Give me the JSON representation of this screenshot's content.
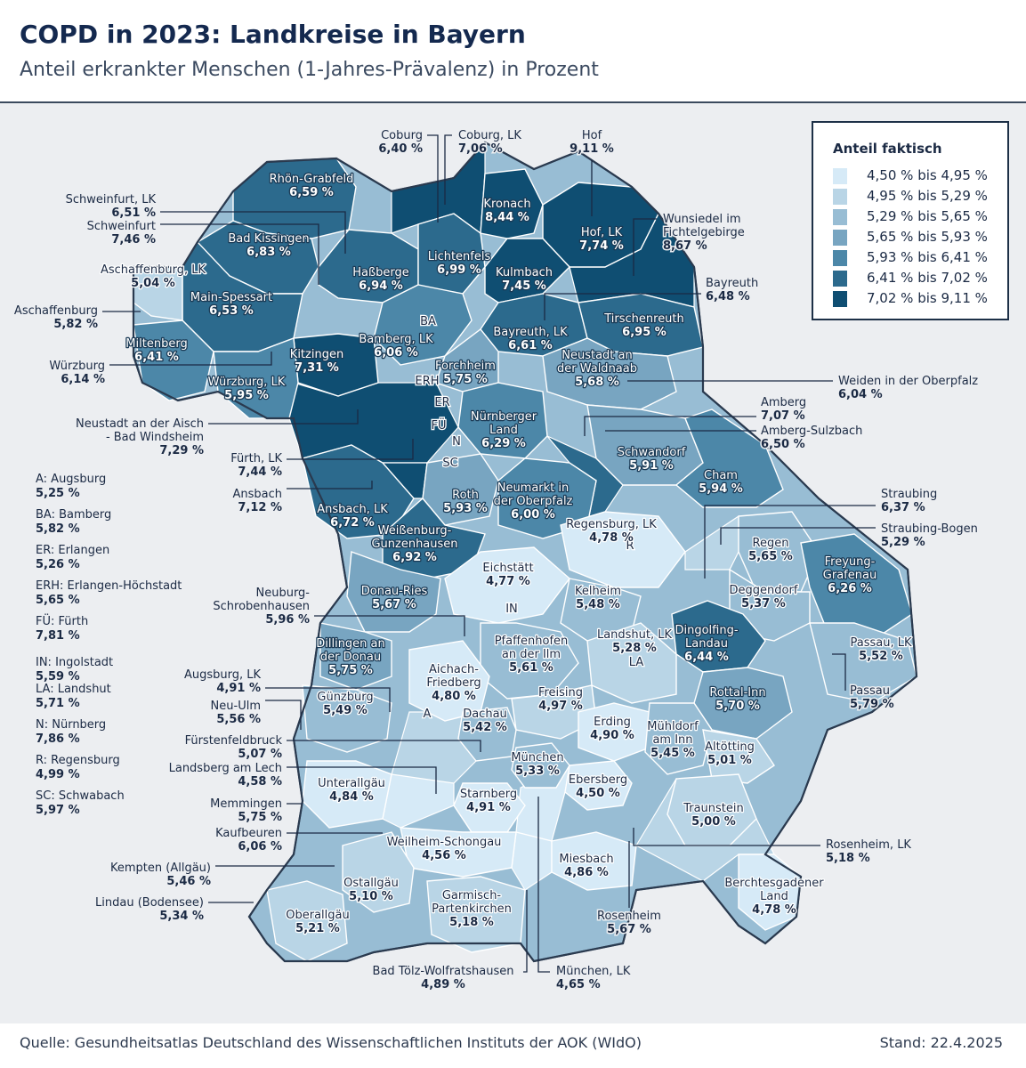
{
  "title": "COPD in 2023: Landkreise in Bayern",
  "subtitle": "Anteil erkrankter Menschen (1-Jahres-Prävalenz) in Prozent",
  "legend": {
    "title": "Anteil faktisch",
    "items": [
      {
        "label": "4,50 % bis 4,95 %",
        "color": "#d6eaf7"
      },
      {
        "label": "4,95 % bis 5,29 %",
        "color": "#b9d5e6"
      },
      {
        "label": "5,29 % bis 5,65 %",
        "color": "#98bdd4"
      },
      {
        "label": "5,65 % bis 5,93 %",
        "color": "#78a5c1"
      },
      {
        "label": "5,93 % bis 6,41 %",
        "color": "#4c87a8"
      },
      {
        "label": "6,41 % bis 7,02 %",
        "color": "#2c6a8d"
      },
      {
        "label": "7,02 % bis 9,11 %",
        "color": "#0f4e72"
      }
    ]
  },
  "abbreviations": [
    {
      "name": "A: Augsburg",
      "value": "5,25 %"
    },
    {
      "name": "BA: Bamberg",
      "value": "5,82 %"
    },
    {
      "name": "ER: Erlangen",
      "value": "5,26 %"
    },
    {
      "name": "ERH: Erlangen-Höchstadt",
      "value": "5,65 %"
    },
    {
      "name": "FÜ: Fürth",
      "value": "7,81 %"
    },
    {
      "name": "IN: Ingolstadt",
      "value": "5,59 %"
    },
    {
      "name": "LA: Landshut",
      "value": "5,71 %"
    },
    {
      "name": "N: Nürnberg",
      "value": "7,86 %"
    },
    {
      "name": "R: Regensburg",
      "value": "4,99 %"
    },
    {
      "name": "SC: Schwabach",
      "value": "5,97 %"
    }
  ],
  "map_abbr_labels": [
    "BA",
    "ERH",
    "ER",
    "FÜ",
    "N",
    "SC",
    "IN",
    "A",
    "LA",
    "R"
  ],
  "regions": [
    {
      "name": "Rhön-Grabfeld",
      "value": "6,59 %"
    },
    {
      "name": "Bad Kissingen",
      "value": "6,83 %"
    },
    {
      "name": "Haßberge",
      "value": "6,94 %"
    },
    {
      "name": "Lichtenfels",
      "value": "6,99 %"
    },
    {
      "name": "Kronach",
      "value": "8,44 %"
    },
    {
      "name": "Hof, LK",
      "value": "7,74 %"
    },
    {
      "name": "Kulmbach",
      "value": "7,45 %"
    },
    {
      "name": "Main-Spessart",
      "value": "6,53 %"
    },
    {
      "name": "Bamberg, LK",
      "value": "6,06 %"
    },
    {
      "name": "Bayreuth, LK",
      "value": "6,61 %"
    },
    {
      "name": "Tirschenreuth",
      "value": "6,95 %"
    },
    {
      "name": "Miltenberg",
      "value": "6,41 %"
    },
    {
      "name": "Kitzingen",
      "value": "7,31 %"
    },
    {
      "name": "Forchheim",
      "value": "5,75 %"
    },
    {
      "name": "Neustadt an der Waldnaab",
      "value": "5,68 %"
    },
    {
      "name": "Nürnberger Land",
      "value": "6,29 %"
    },
    {
      "name": "Schwandorf",
      "value": "5,91 %"
    },
    {
      "name": "Cham",
      "value": "5,94 %"
    },
    {
      "name": "Roth",
      "value": "5,93 %"
    },
    {
      "name": "Neumarkt in der Oberpfalz",
      "value": "6,00 %"
    },
    {
      "name": "Ansbach, LK",
      "value": "6,72 %"
    },
    {
      "name": "Weißenburg-Gunzenhausen",
      "value": "6,92 %"
    },
    {
      "name": "Regensburg, LK",
      "value": "4,78 %"
    },
    {
      "name": "Regen",
      "value": "5,65 %"
    },
    {
      "name": "Eichstätt",
      "value": "4,77 %"
    },
    {
      "name": "Donau-Ries",
      "value": "5,67 %"
    },
    {
      "name": "Kelheim",
      "value": "5,48 %"
    },
    {
      "name": "Freyung-Grafenau",
      "value": "6,26 %"
    },
    {
      "name": "Deggendorf",
      "value": "5,37 %"
    },
    {
      "name": "Dingolfing-Landau",
      "value": "6,44 %"
    },
    {
      "name": "Dillingen an der Donau",
      "value": "5,75 %"
    },
    {
      "name": "Pfaffenhofen an der Ilm",
      "value": "5,61 %"
    },
    {
      "name": "Landshut, LK",
      "value": "5,28 %"
    },
    {
      "name": "Passau, LK",
      "value": "5,52 %"
    },
    {
      "name": "Aichach-Friedberg",
      "value": "4,80 %"
    },
    {
      "name": "Freising",
      "value": "4,97 %"
    },
    {
      "name": "Rottal-Inn",
      "value": "5,70 %"
    },
    {
      "name": "Günzburg",
      "value": "5,49 %"
    },
    {
      "name": "Dachau",
      "value": "5,42 %"
    },
    {
      "name": "Erding",
      "value": "4,90 %"
    },
    {
      "name": "Mühldorf am Inn",
      "value": "5,45 %"
    },
    {
      "name": "Altötting",
      "value": "5,01 %"
    },
    {
      "name": "München",
      "value": "5,33 %"
    },
    {
      "name": "Unterallgäu",
      "value": "4,84 %"
    },
    {
      "name": "Starnberg",
      "value": "4,91 %"
    },
    {
      "name": "Ebersberg",
      "value": "4,50 %"
    },
    {
      "name": "Traunstein",
      "value": "5,00 %"
    },
    {
      "name": "Weilheim-Schongau",
      "value": "4,56 %"
    },
    {
      "name": "Miesbach",
      "value": "4,86 %"
    },
    {
      "name": "Ostallgäu",
      "value": "5,10 %"
    },
    {
      "name": "Garmisch-Partenkirchen",
      "value": "5,18 %"
    },
    {
      "name": "Oberallgäu",
      "value": "5,21 %"
    },
    {
      "name": "Berchtesgadener Land",
      "value": "4,78 %"
    },
    {
      "name": "Aschaffenburg, LK",
      "value": "5,04 %"
    },
    {
      "name": "Würzburg, LK",
      "value": "5,95 %"
    }
  ],
  "callouts": [
    {
      "name": "Coburg",
      "value": "6,40 %"
    },
    {
      "name": "Coburg, LK",
      "value": "7,06 %"
    },
    {
      "name": "Hof",
      "value": "9,11 %"
    },
    {
      "name": "Schweinfurt, LK",
      "value": "6,51 %"
    },
    {
      "name": "Schweinfurt",
      "value": "7,46 %"
    },
    {
      "name": "Wunsiedel im Fichtelgebirge",
      "value": "8,67 %"
    },
    {
      "name": "Bayreuth",
      "value": "6,48 %"
    },
    {
      "name": "Aschaffenburg",
      "value": "5,82 %"
    },
    {
      "name": "Würzburg",
      "value": "6,14 %"
    },
    {
      "name": "Weiden in der Oberpfalz",
      "value": "6,04 %"
    },
    {
      "name": "Amberg",
      "value": "7,07 %"
    },
    {
      "name": "Amberg-Sulzbach",
      "value": "6,50 %"
    },
    {
      "name": "Neustadt an der Aisch - Bad Windsheim",
      "value": "7,29 %"
    },
    {
      "name": "Fürth, LK",
      "value": "7,44 %"
    },
    {
      "name": "Ansbach",
      "value": "7,12 %"
    },
    {
      "name": "Straubing",
      "value": "6,37 %"
    },
    {
      "name": "Straubing-Bogen",
      "value": "5,29 %"
    },
    {
      "name": "Neuburg-Schrobenhausen",
      "value": "5,96 %"
    },
    {
      "name": "Augsburg, LK",
      "value": "4,91 %"
    },
    {
      "name": "Neu-Ulm",
      "value": "5,56 %"
    },
    {
      "name": "Passau",
      "value": "5,79 %"
    },
    {
      "name": "Fürstenfeldbruck",
      "value": "5,07 %"
    },
    {
      "name": "Landsberg am Lech",
      "value": "4,58 %"
    },
    {
      "name": "Memmingen",
      "value": "5,75 %"
    },
    {
      "name": "Kaufbeuren",
      "value": "6,06 %"
    },
    {
      "name": "Rosenheim, LK",
      "value": "5,18 %"
    },
    {
      "name": "Kempten (Allgäu)",
      "value": "5,46 %"
    },
    {
      "name": "Lindau (Bodensee)",
      "value": "5,34 %"
    },
    {
      "name": "Rosenheim",
      "value": "5,67 %"
    },
    {
      "name": "Bad Tölz-Wolfratshausen",
      "value": "4,89 %"
    },
    {
      "name": "München, LK",
      "value": "4,65 %"
    }
  ],
  "footer": {
    "source": "Quelle: Gesundheitsatlas Deutschland des Wissenschaftlichen Instituts der AOK (WIdO)",
    "date": "Stand: 22.4.2025"
  }
}
